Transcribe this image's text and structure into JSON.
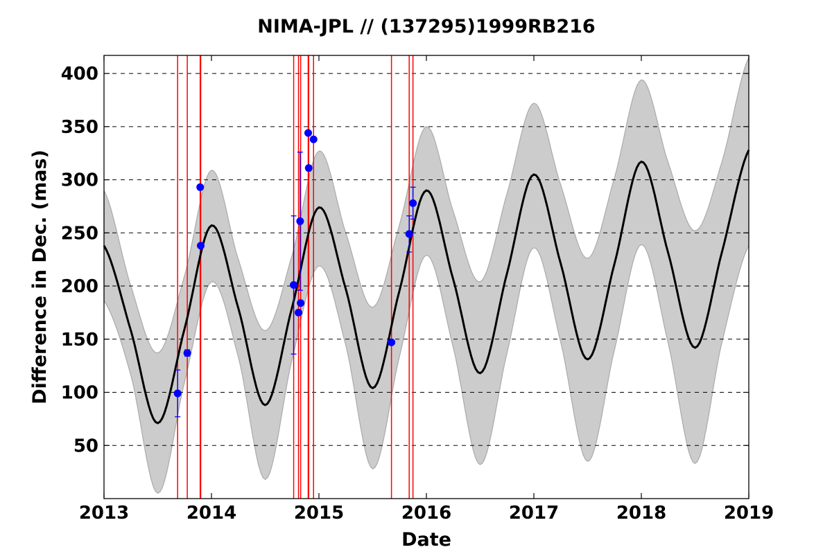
{
  "chart_data": {
    "type": "line",
    "title": "NIMA-JPL // (137295)1999RB216",
    "xlabel": "Date",
    "ylabel": "Difference in Dec. (mas)",
    "xlim": [
      2013.0,
      2019.0
    ],
    "ylim": [
      0,
      417
    ],
    "x_ticks": [
      2013,
      2014,
      2015,
      2016,
      2017,
      2018,
      2019
    ],
    "x_tick_labels": [
      "2013",
      "2014",
      "2015",
      "2016",
      "2017",
      "2018",
      "2019"
    ],
    "y_ticks": [
      50,
      100,
      150,
      200,
      250,
      300,
      350,
      400
    ],
    "y_tick_labels": [
      "50",
      "100",
      "150",
      "200",
      "250",
      "300",
      "350",
      "400"
    ],
    "grid": "horizontal dashed",
    "series": [
      {
        "kind": "line",
        "color": "#000000",
        "x": [
          2013.0,
          2013.25,
          2013.5,
          2013.75,
          2014.0,
          2014.25,
          2014.5,
          2014.75,
          2015.0,
          2015.25,
          2015.5,
          2015.75,
          2016.0,
          2016.25,
          2016.5,
          2016.75,
          2017.0,
          2017.25,
          2017.5,
          2017.75,
          2018.0,
          2018.25,
          2018.5,
          2018.75,
          2019.0
        ],
        "y": [
          238,
          158,
          71,
          160,
          257,
          179,
          88,
          180,
          274,
          197,
          104,
          196,
          290,
          206,
          118,
          212,
          305,
          221,
          131,
          221,
          317,
          231,
          142,
          232,
          328
        ]
      },
      {
        "kind": "band",
        "color": "#cccccc",
        "x": [
          2013.0,
          2013.25,
          2013.5,
          2013.75,
          2014.0,
          2014.25,
          2014.5,
          2014.75,
          2015.0,
          2015.25,
          2015.5,
          2015.75,
          2016.0,
          2016.25,
          2016.5,
          2016.75,
          2017.0,
          2017.25,
          2017.5,
          2017.75,
          2018.0,
          2018.25,
          2018.5,
          2018.75,
          2019.0
        ],
        "upper": [
          290,
          200,
          137,
          210,
          309,
          225,
          158,
          229,
          327,
          250,
          180,
          258,
          350,
          270,
          204,
          287,
          372,
          295,
          226,
          302,
          394,
          316,
          252,
          317,
          415
        ],
        "lower": [
          186,
          116,
          5,
          110,
          204,
          133,
          18,
          131,
          219,
          144,
          28,
          134,
          229,
          142,
          32,
          137,
          236,
          147,
          35,
          140,
          239,
          146,
          33,
          147,
          238
        ]
      },
      {
        "kind": "scatter",
        "color": "#0000ff",
        "points": [
          {
            "x": 2013.685,
            "y": 99,
            "err": 22
          },
          {
            "x": 2013.775,
            "y": 137,
            "err": 3
          },
          {
            "x": 2013.895,
            "y": 293,
            "err": 0
          },
          {
            "x": 2013.9,
            "y": 238,
            "err": 0
          },
          {
            "x": 2014.765,
            "y": 201,
            "err": 65
          },
          {
            "x": 2014.81,
            "y": 175,
            "err": 0
          },
          {
            "x": 2014.825,
            "y": 261,
            "err": 65
          },
          {
            "x": 2014.83,
            "y": 184,
            "err": 0
          },
          {
            "x": 2014.9,
            "y": 344,
            "err": 0
          },
          {
            "x": 2014.905,
            "y": 311,
            "err": 0
          },
          {
            "x": 2014.95,
            "y": 338,
            "err": 0
          },
          {
            "x": 2015.675,
            "y": 147,
            "err": 0
          },
          {
            "x": 2015.84,
            "y": 249,
            "err": 17
          },
          {
            "x": 2015.875,
            "y": 278,
            "err": 15
          }
        ]
      },
      {
        "kind": "vlines",
        "color": "#ff0000",
        "x": [
          2013.685,
          2013.775,
          2013.895,
          2013.9,
          2014.765,
          2014.81,
          2014.83,
          2014.9,
          2014.905,
          2014.95,
          2015.675,
          2015.84,
          2015.875
        ]
      }
    ]
  }
}
